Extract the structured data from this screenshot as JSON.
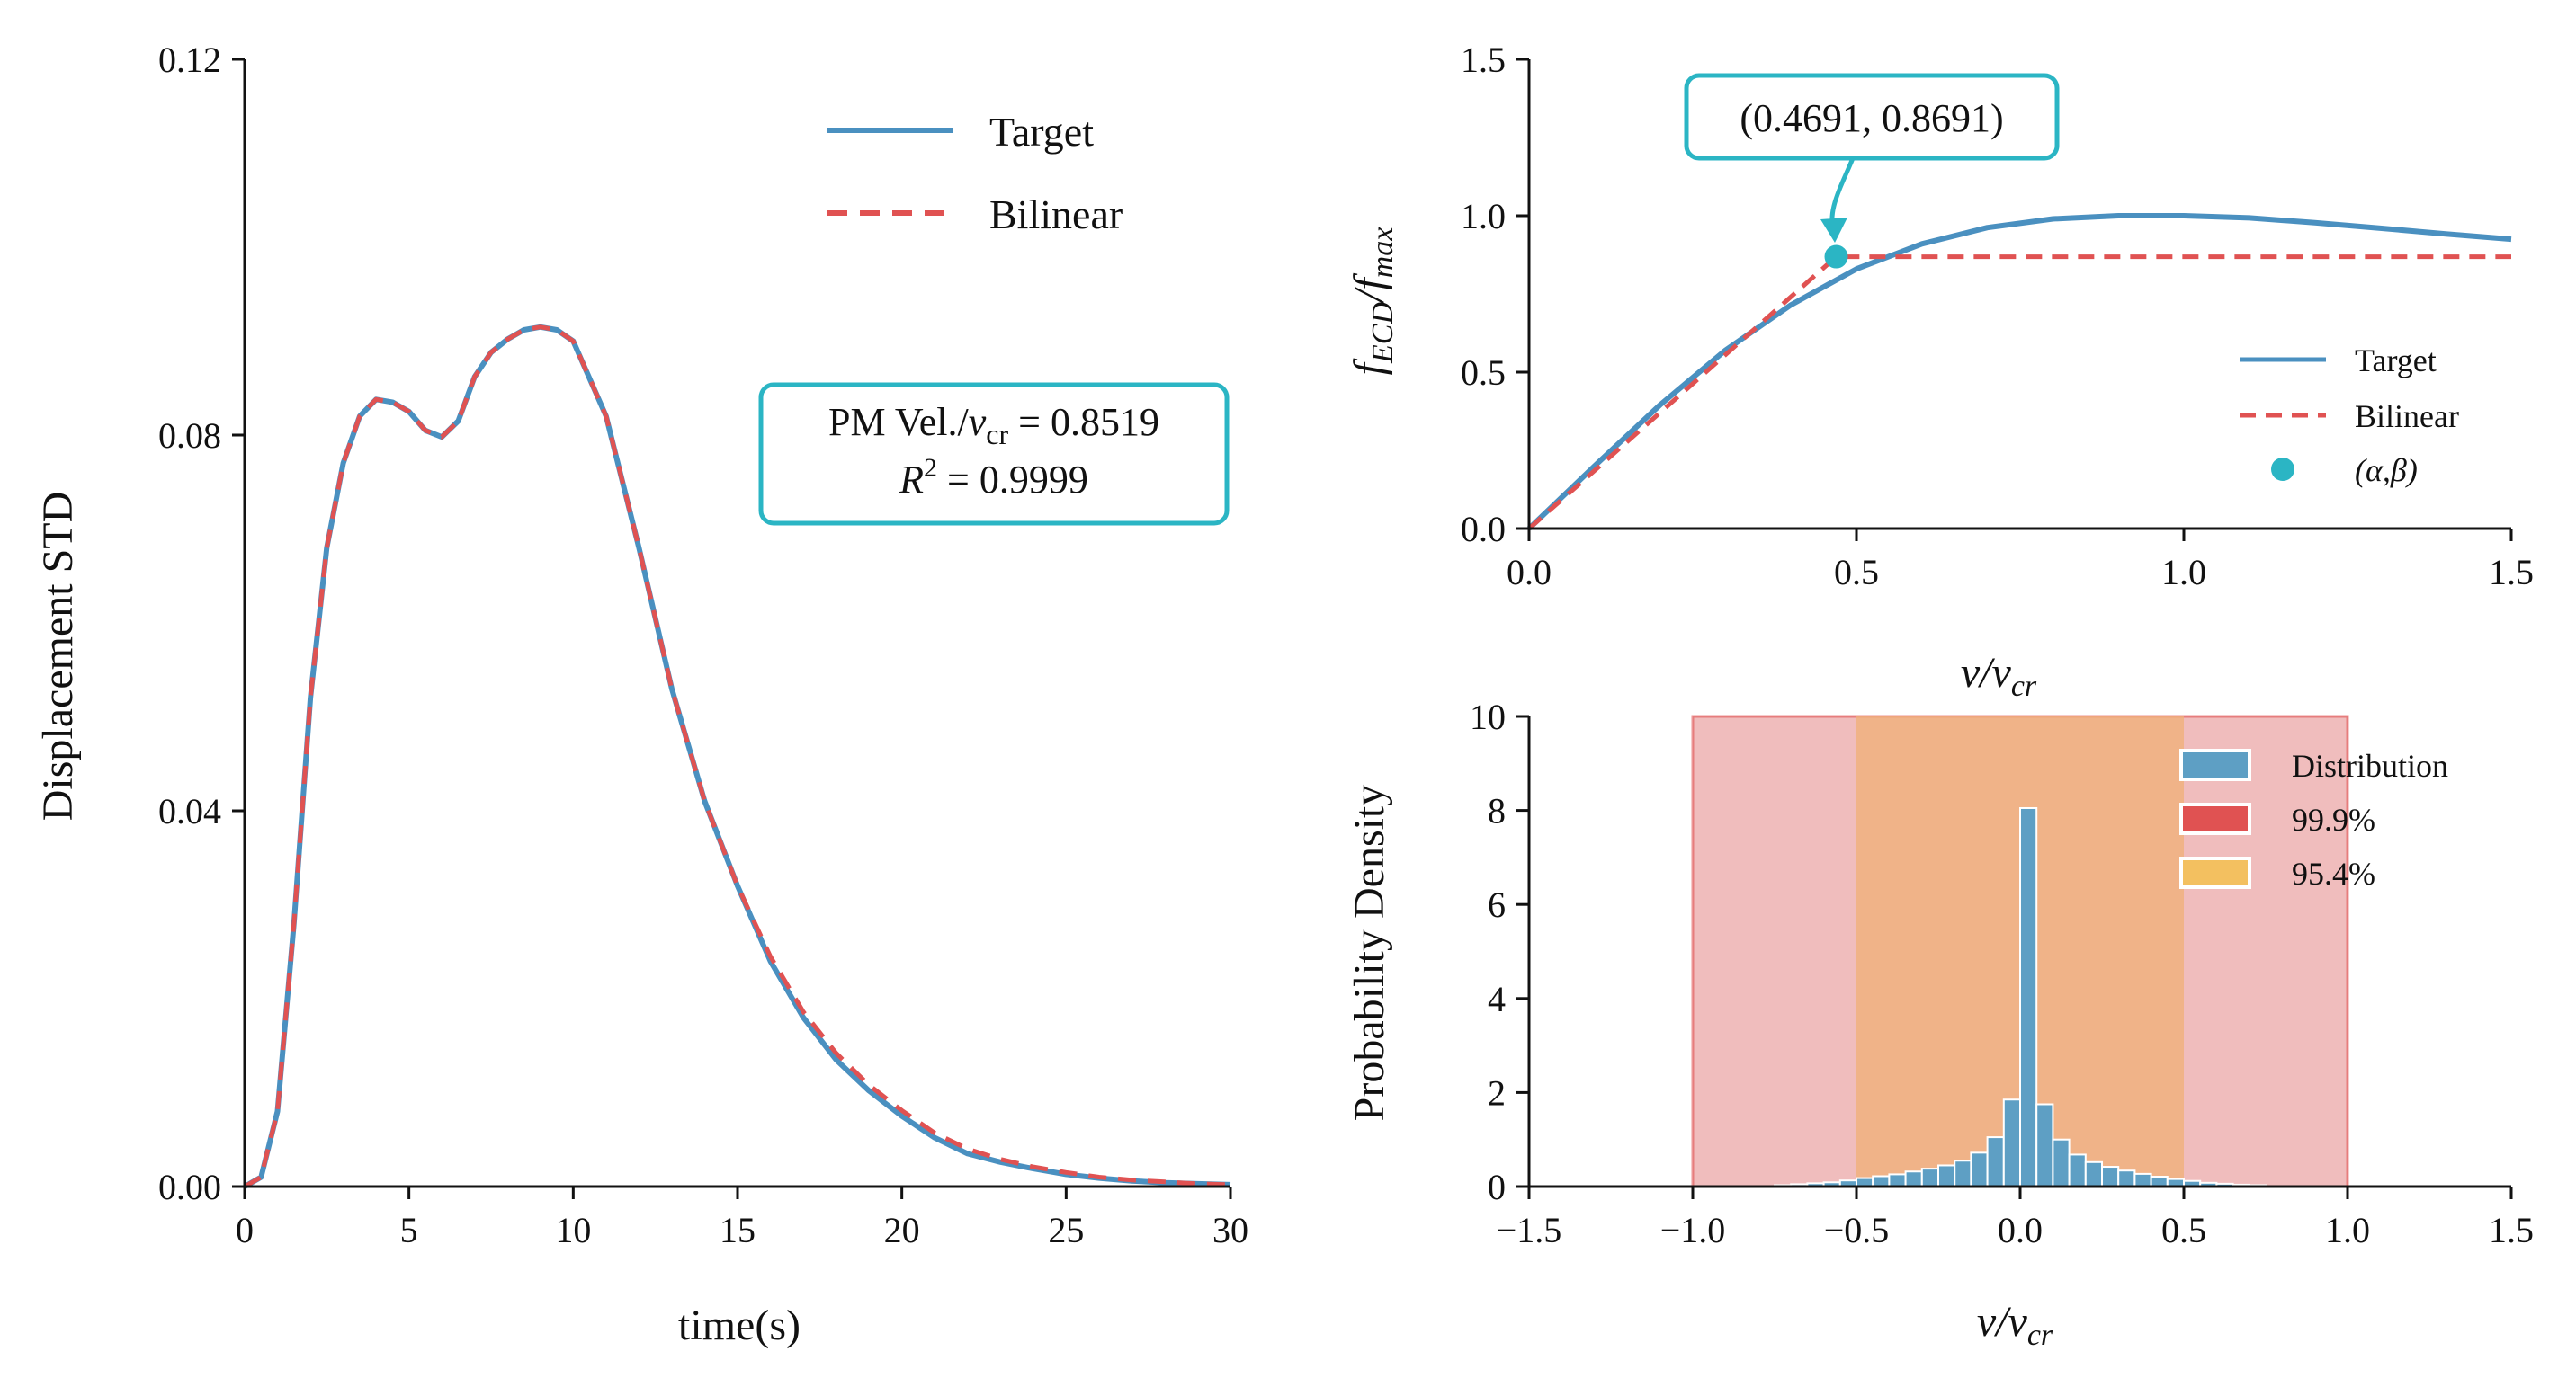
{
  "colors": {
    "target": "#4a90c0",
    "bilinear": "#e05252",
    "accent": "#2bb5c4",
    "hist_fill": "#5e9fc4",
    "band999": "#e89a9a",
    "band954": "#f0b07a"
  },
  "chart_data": [
    {
      "id": "left",
      "type": "line",
      "xlabel": "time(s)",
      "ylabel": "Displacement STD",
      "xlim": [
        0,
        30
      ],
      "ylim": [
        0,
        0.12
      ],
      "xticks": [
        0,
        5,
        10,
        15,
        20,
        25,
        30
      ],
      "xtick_labels": [
        "0",
        "5",
        "10",
        "15",
        "20",
        "25",
        "30"
      ],
      "yticks": [
        0,
        0.04,
        0.08,
        0.12
      ],
      "ytick_labels": [
        "0.00",
        "0.04",
        "0.08",
        "0.12"
      ],
      "series": [
        {
          "name": "Target",
          "style": "solid",
          "x": [
            0,
            0.5,
            1,
            1.5,
            2,
            2.5,
            3,
            3.5,
            4,
            4.5,
            5,
            5.5,
            6,
            6.5,
            7,
            7.5,
            8,
            8.5,
            9,
            9.5,
            10,
            11,
            12,
            13,
            14,
            15,
            16,
            17,
            18,
            19,
            20,
            21,
            22,
            23,
            24,
            25,
            26,
            27,
            28,
            29,
            30
          ],
          "y": [
            0,
            0.001,
            0.008,
            0.028,
            0.052,
            0.068,
            0.077,
            0.082,
            0.0838,
            0.0835,
            0.0825,
            0.0805,
            0.0798,
            0.0815,
            0.0862,
            0.0888,
            0.0902,
            0.0912,
            0.0915,
            0.0912,
            0.09,
            0.082,
            0.068,
            0.053,
            0.041,
            0.032,
            0.024,
            0.018,
            0.0135,
            0.0102,
            0.0075,
            0.0052,
            0.0035,
            0.0026,
            0.0019,
            0.0013,
            0.0009,
            0.0006,
            0.0004,
            0.0003,
            0.0002
          ]
        },
        {
          "name": "Bilinear",
          "style": "dashed",
          "x": [
            0,
            0.5,
            1,
            1.5,
            2,
            2.5,
            3,
            3.5,
            4,
            4.5,
            5,
            5.5,
            6,
            6.5,
            7,
            7.5,
            8,
            8.5,
            9,
            9.5,
            10,
            11,
            12,
            13,
            14,
            15,
            16,
            17,
            18,
            19,
            20,
            21,
            22,
            23,
            24,
            25,
            26,
            27,
            28,
            29,
            30
          ],
          "y": [
            0,
            0.001,
            0.008,
            0.028,
            0.052,
            0.068,
            0.077,
            0.082,
            0.0838,
            0.0835,
            0.0825,
            0.0805,
            0.0798,
            0.0815,
            0.0862,
            0.0888,
            0.0902,
            0.0912,
            0.0915,
            0.0912,
            0.09,
            0.082,
            0.068,
            0.053,
            0.041,
            0.032,
            0.0245,
            0.0186,
            0.0142,
            0.0108,
            0.0081,
            0.0057,
            0.004,
            0.0029,
            0.0021,
            0.0015,
            0.001,
            0.0007,
            0.0005,
            0.0003,
            0.0002
          ]
        }
      ],
      "legend": {
        "entries": [
          "Target",
          "Bilinear"
        ],
        "loc": "upper-right"
      },
      "annotation": {
        "line1": "PM Vel./",
        "line1_var": "v",
        "line1_sub": "cr",
        "line1_val": " = 0.8519",
        "line2_var": "R",
        "line2_sup": "2",
        "line2_val": " = 0.9999"
      }
    },
    {
      "id": "top-right",
      "type": "line",
      "xlabel_var": "v/v",
      "xlabel_sub": "cr",
      "ylabel_f1": "f",
      "ylabel_sub1": "ECD",
      "ylabel_f2": "/f",
      "ylabel_sub2": "max",
      "xlim": [
        0,
        1.5
      ],
      "ylim": [
        0,
        1.5
      ],
      "xticks": [
        0,
        0.5,
        1.0,
        1.5
      ],
      "xtick_labels": [
        "0.0",
        "0.5",
        "1.0",
        "1.5"
      ],
      "yticks": [
        0,
        0.5,
        1.0,
        1.5
      ],
      "ytick_labels": [
        "0.0",
        "0.5",
        "1.0",
        "1.5"
      ],
      "series": [
        {
          "name": "Target",
          "style": "solid",
          "x": [
            0,
            0.1,
            0.2,
            0.3,
            0.4,
            0.5,
            0.6,
            0.7,
            0.8,
            0.9,
            1.0,
            1.1,
            1.2,
            1.3,
            1.4,
            1.5
          ],
          "y": [
            0,
            0.2,
            0.395,
            0.57,
            0.715,
            0.83,
            0.91,
            0.962,
            0.99,
            1.0,
            1.0,
            0.993,
            0.978,
            0.96,
            0.942,
            0.925
          ]
        },
        {
          "name": "Bilinear",
          "style": "dashed",
          "x": [
            0,
            0.4691,
            1.5
          ],
          "y": [
            0,
            0.8691,
            0.8691
          ]
        }
      ],
      "point": {
        "name": "(α,β)",
        "x": 0.4691,
        "y": 0.8691
      },
      "callout": "(0.4691, 0.8691)",
      "legend": {
        "entries": [
          "Target",
          "Bilinear",
          "(α,β)"
        ],
        "loc": "lower-right"
      }
    },
    {
      "id": "bottom-right",
      "type": "bar",
      "xlabel_var": "v/v",
      "xlabel_sub": "cr",
      "ylabel": "Probability Density",
      "xlim": [
        -1.5,
        1.5
      ],
      "ylim": [
        0,
        10
      ],
      "xticks": [
        -1.5,
        -1.0,
        -0.5,
        0,
        0.5,
        1.0,
        1.5
      ],
      "xtick_labels": [
        "−1.5",
        "−1.0",
        "−0.5",
        "0.0",
        "0.5",
        "1.0",
        "1.5"
      ],
      "yticks": [
        0,
        2,
        4,
        6,
        8,
        10
      ],
      "ytick_labels": [
        "0",
        "2",
        "4",
        "6",
        "8",
        "10"
      ],
      "bin_width": 0.05,
      "bins": [
        -0.725,
        -0.675,
        -0.625,
        -0.575,
        -0.525,
        -0.475,
        -0.425,
        -0.375,
        -0.325,
        -0.275,
        -0.225,
        -0.175,
        -0.125,
        -0.075,
        -0.025,
        0.025,
        0.075,
        0.125,
        0.175,
        0.225,
        0.275,
        0.325,
        0.375,
        0.425,
        0.475,
        0.525,
        0.575,
        0.625,
        0.675,
        0.725
      ],
      "values": [
        0.03,
        0.05,
        0.07,
        0.09,
        0.13,
        0.18,
        0.22,
        0.26,
        0.32,
        0.38,
        0.45,
        0.55,
        0.72,
        1.05,
        1.85,
        8.05,
        1.75,
        1.0,
        0.68,
        0.52,
        0.42,
        0.34,
        0.27,
        0.21,
        0.16,
        0.12,
        0.08,
        0.06,
        0.04,
        0.03
      ],
      "bands": [
        {
          "name": "99.9%",
          "from": -1.0,
          "to": 1.0
        },
        {
          "name": "95.4%",
          "from": -0.5,
          "to": 0.5
        }
      ],
      "legend": {
        "entries": [
          "Distribution",
          "99.9%",
          "95.4%"
        ],
        "loc": "upper-right"
      }
    }
  ]
}
